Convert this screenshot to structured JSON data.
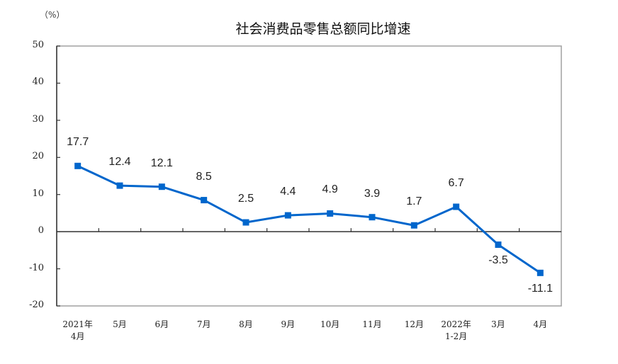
{
  "chart_data": {
    "type": "line",
    "title": "社会消费品零售总额同比增速",
    "ylabel": "（%）",
    "xlabel": "",
    "ylim": [
      -20,
      50
    ],
    "yticks": [
      50,
      40,
      30,
      20,
      10,
      0,
      -10,
      -20
    ],
    "grid": false,
    "legend": null,
    "categories": [
      "2021年 4月",
      "5月",
      "6月",
      "7月",
      "8月",
      "9月",
      "10月",
      "11月",
      "12月",
      "2022年 1-2月",
      "3月",
      "4月"
    ],
    "category_lines": [
      [
        "2021年",
        "4月"
      ],
      [
        "5月"
      ],
      [
        "6月"
      ],
      [
        "7月"
      ],
      [
        "8月"
      ],
      [
        "9月"
      ],
      [
        "10月"
      ],
      [
        "11月"
      ],
      [
        "12月"
      ],
      [
        "2022年",
        "1-2月"
      ],
      [
        "3月"
      ],
      [
        "4月"
      ]
    ],
    "series": [
      {
        "name": "社会消费品零售总额同比增速",
        "color": "#0066CC",
        "marker": "square",
        "values": [
          17.7,
          12.4,
          12.1,
          8.5,
          2.5,
          4.4,
          4.9,
          3.9,
          1.7,
          6.7,
          -3.5,
          -11.1
        ],
        "labels": [
          "17.7",
          "12.4",
          "12.1",
          "8.5",
          "2.5",
          "4.4",
          "4.9",
          "3.9",
          "1.7",
          "6.7",
          "-3.5",
          "-11.1"
        ]
      }
    ]
  },
  "ytick_labels": [
    "50",
    "40",
    "30",
    "20",
    "10",
    "0",
    "-10",
    "-20"
  ],
  "colors": {
    "line": "#0066CC",
    "axis": "#333333",
    "frame": "#A0A0A0"
  }
}
